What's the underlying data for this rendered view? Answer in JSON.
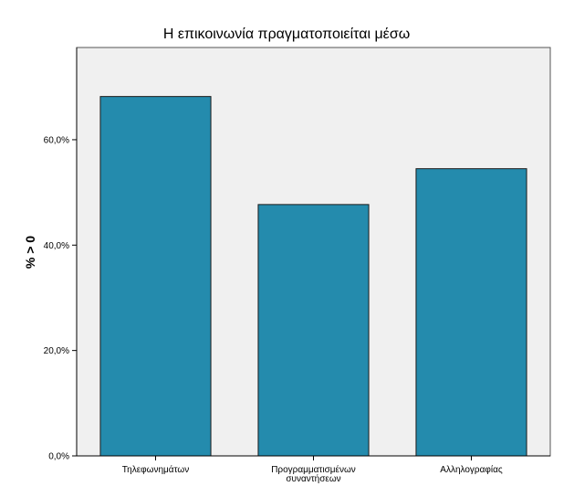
{
  "chart_data": {
    "type": "bar",
    "title": "Η επικοινωνία πραγματοποιείται μέσω",
    "xlabel": "",
    "ylabel": "% > 0",
    "categories": [
      [
        "Τηλεφωνημάτων"
      ],
      [
        "Προγραμματισμένων",
        "συναντήσεων"
      ],
      [
        "Αλληλογραφίας"
      ]
    ],
    "values": [
      68.2,
      47.7,
      54.5
    ],
    "yticks": [
      0,
      20,
      40,
      60
    ],
    "ytick_labels": [
      "0,0%",
      "20,0%",
      "40,0%",
      "60,0%"
    ],
    "ylim": [
      0,
      77.5
    ],
    "grid": false,
    "legend": "none",
    "colors": {
      "bar_fill": "#248BAD",
      "bar_stroke": "#1a1a1a",
      "plot_background": "#F0F0F0",
      "axis": "#000000"
    }
  }
}
